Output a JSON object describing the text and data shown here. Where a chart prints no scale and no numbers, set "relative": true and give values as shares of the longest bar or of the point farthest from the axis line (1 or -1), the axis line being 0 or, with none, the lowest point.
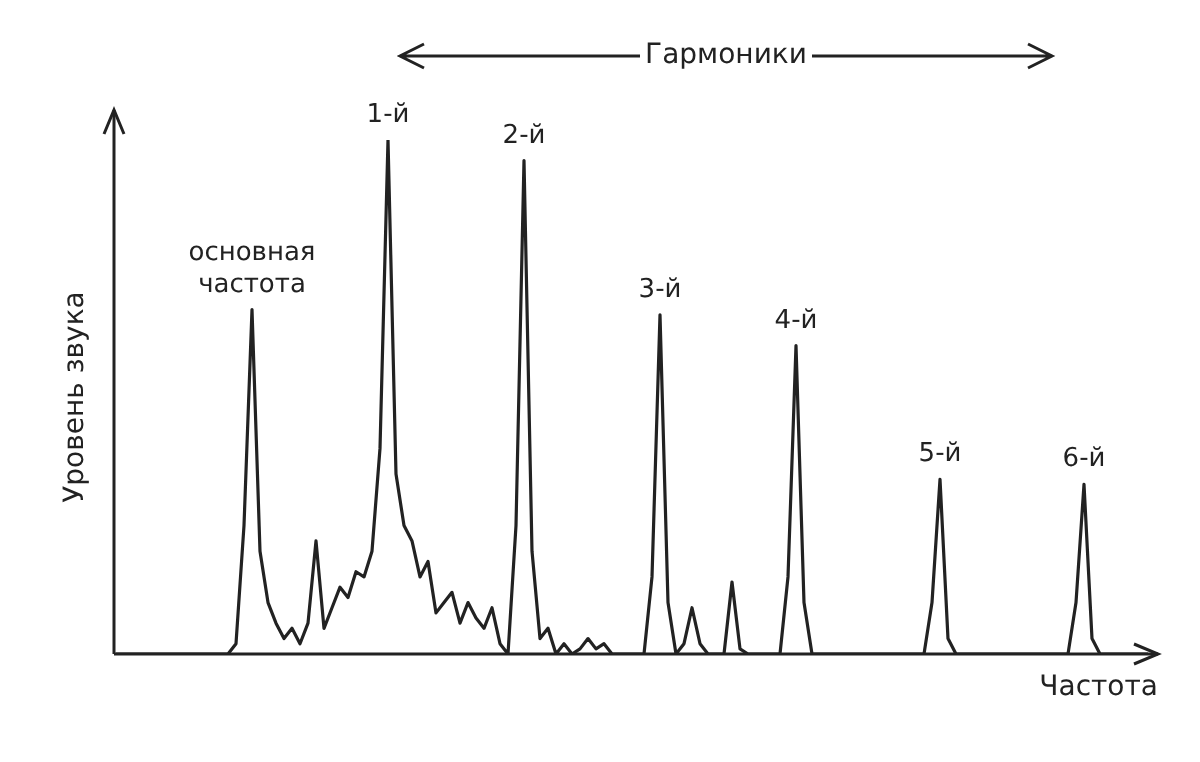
{
  "chart_data": {
    "type": "line",
    "title": "Гармоники",
    "xlabel": "Частота",
    "ylabel": "Уровень звука",
    "relative": true,
    "tick_labels": false,
    "legend": false,
    "marker": "none",
    "line_style": "solid",
    "categories": [
      null,
      null,
      null,
      null,
      null,
      null,
      null,
      null,
      null,
      null,
      null,
      null,
      null,
      null,
      null,
      null,
      null,
      null,
      null,
      null,
      null,
      null,
      null,
      null,
      null,
      null,
      null,
      null,
      null,
      null,
      null,
      null,
      null,
      null,
      null,
      null,
      null,
      null,
      null,
      null,
      null,
      null,
      null,
      null,
      null,
      null,
      null,
      null,
      null,
      null,
      null,
      null,
      null,
      null,
      null,
      null,
      null,
      null,
      null,
      null,
      null,
      null,
      null,
      null,
      null,
      null,
      null,
      null,
      null,
      null,
      null,
      null,
      null,
      null,
      null,
      null,
      null,
      null,
      null,
      null,
      null,
      null,
      null,
      null,
      null,
      null,
      null,
      null,
      null,
      null,
      null,
      null,
      null,
      null,
      null,
      null,
      null,
      null,
      null,
      null,
      null,
      null,
      null,
      null,
      null,
      null,
      null,
      null,
      null,
      null,
      null,
      null,
      null,
      null,
      null,
      null,
      null,
      null,
      null,
      null,
      null,
      null,
      null,
      null,
      null,
      null,
      null,
      null,
      null,
      null
    ],
    "series": [
      {
        "color": "#222222",
        "values": [
          0,
          0,
          0,
          0,
          0,
          0,
          0,
          0,
          0,
          0,
          0,
          0,
          0,
          0,
          0,
          0.02,
          0.25,
          0.67,
          0.2,
          0.1,
          0.06,
          0.03,
          0.05,
          0.02,
          0.06,
          0.22,
          0.05,
          0.09,
          0.13,
          0.11,
          0.16,
          0.15,
          0.2,
          0.4,
          1.0,
          0.35,
          0.25,
          0.22,
          0.15,
          0.18,
          0.08,
          0.1,
          0.12,
          0.06,
          0.1,
          0.07,
          0.05,
          0.09,
          0.02,
          0,
          0.25,
          0.96,
          0.2,
          0.03,
          0.05,
          0,
          0.02,
          0,
          0.01,
          0.03,
          0.01,
          0.02,
          0,
          0,
          0,
          0,
          0,
          0.15,
          0.66,
          0.1,
          0,
          0.02,
          0.09,
          0.02,
          0,
          0,
          0,
          0.14,
          0.01,
          0,
          0,
          0,
          0,
          0,
          0.15,
          0.6,
          0.1,
          0,
          0,
          0,
          0,
          0,
          0,
          0,
          0,
          0,
          0,
          0,
          0,
          0,
          0,
          0,
          0.1,
          0.34,
          0.03,
          0,
          0,
          0,
          0,
          0,
          0,
          0,
          0,
          0,
          0,
          0,
          0,
          0,
          0,
          0,
          0.1,
          0.33,
          0.03,
          0,
          0,
          0,
          0,
          0,
          0,
          0
        ]
      }
    ],
    "annotations": [
      {
        "text": "основная\nчастота",
        "y": 0.67
      },
      {
        "text": "1-й",
        "y": 1.0
      },
      {
        "text": "2-й",
        "y": 0.96
      },
      {
        "text": "3-й",
        "y": 0.66
      },
      {
        "text": "4-й",
        "y": 0.6
      },
      {
        "text": "5-й",
        "y": 0.34
      },
      {
        "text": "6-й",
        "y": 0.33
      }
    ]
  }
}
